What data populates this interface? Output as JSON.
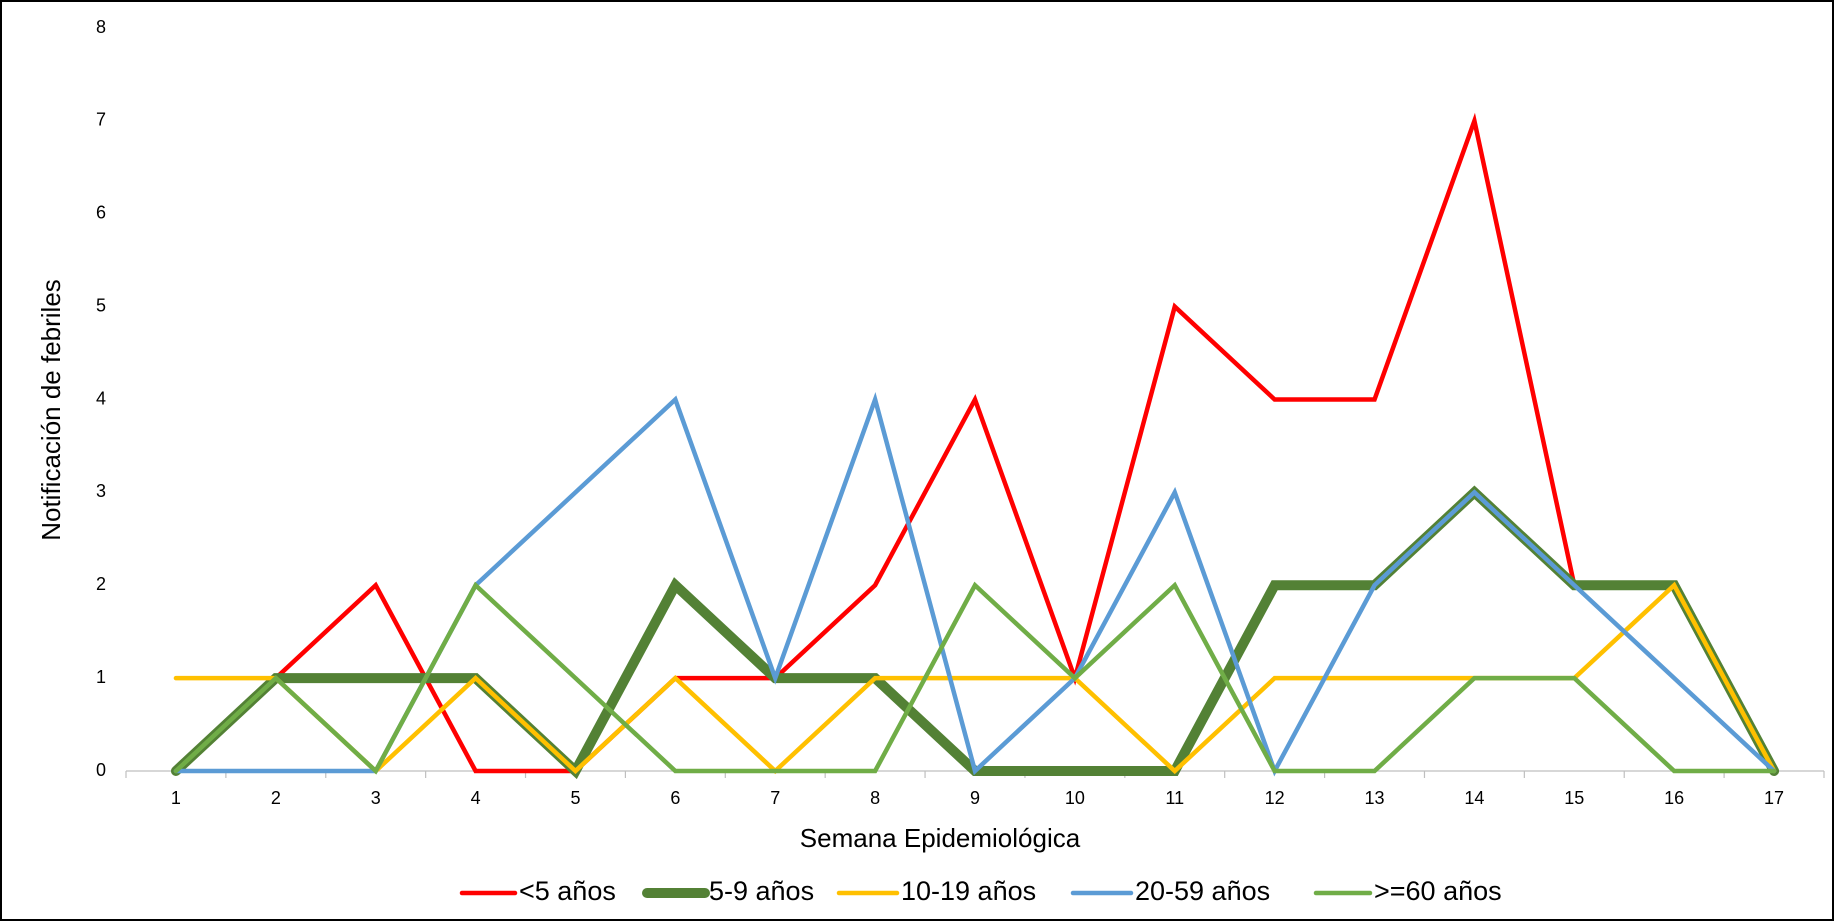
{
  "chart_data": {
    "type": "line",
    "x_label": "Semana Epidemiológica",
    "y_label": "Notificación de febriles",
    "categories": [
      "1",
      "2",
      "3",
      "4",
      "5",
      "6",
      "7",
      "8",
      "9",
      "10",
      "11",
      "12",
      "13",
      "14",
      "15",
      "16",
      "17"
    ],
    "ylim": [
      0,
      8
    ],
    "yticks": [
      0,
      1,
      2,
      3,
      4,
      5,
      6,
      7,
      8
    ],
    "grid": false,
    "legend": "bottom",
    "series": [
      {
        "name": "<5 años",
        "color": "#ff0000",
        "values": [
          0,
          1,
          2,
          0,
          0,
          1,
          1,
          2,
          4,
          1,
          5,
          4,
          4,
          7,
          2,
          2,
          0
        ]
      },
      {
        "name": "5-9 años",
        "color": "#538135",
        "values": [
          0,
          1,
          1,
          1,
          0,
          2,
          1,
          1,
          0,
          0,
          0,
          2,
          2,
          3,
          2,
          2,
          0
        ]
      },
      {
        "name": "10-19 años",
        "color": "#ffc000",
        "values": [
          1,
          1,
          0,
          1,
          0,
          1,
          0,
          1,
          1,
          1,
          0,
          1,
          1,
          1,
          1,
          2,
          0
        ]
      },
      {
        "name": "20-59 años",
        "color": "#5b9bd5",
        "values": [
          0,
          0,
          0,
          2,
          3,
          4,
          1,
          4,
          0,
          1,
          3,
          0,
          2,
          3,
          2,
          1,
          0
        ]
      },
      {
        "name": ">=60 años",
        "color": "#70ad47",
        "values": [
          0,
          1,
          0,
          2,
          1,
          0,
          0,
          0,
          2,
          1,
          2,
          0,
          0,
          1,
          1,
          0,
          0
        ]
      }
    ]
  }
}
